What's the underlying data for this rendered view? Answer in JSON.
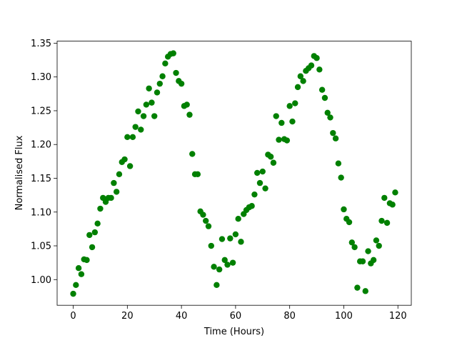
{
  "chart_data": {
    "type": "scatter",
    "xlabel": "Time (Hours)",
    "ylabel": "Normalised Flux",
    "color": "#008000",
    "x": [
      0,
      1,
      2,
      3,
      4,
      5,
      6,
      7,
      8,
      9,
      10,
      11,
      12,
      13,
      14,
      15,
      16,
      17,
      18,
      19,
      20,
      21,
      22,
      23,
      24,
      25,
      26,
      27,
      28,
      29,
      30,
      31,
      32,
      33,
      34,
      35,
      36,
      37,
      38,
      39,
      40,
      41,
      42,
      43,
      44,
      45,
      46,
      47,
      48,
      49,
      50,
      51,
      52,
      53,
      54,
      55,
      56,
      57,
      58,
      59,
      60,
      61,
      62,
      63,
      64,
      65,
      66,
      67,
      68,
      69,
      70,
      71,
      72,
      73,
      74,
      75,
      76,
      77,
      78,
      79,
      80,
      81,
      82,
      83,
      84,
      85,
      86,
      87,
      88,
      89,
      90,
      91,
      92,
      93,
      94,
      95,
      96,
      97,
      98,
      99,
      100,
      101,
      102,
      103,
      104,
      105,
      106,
      107,
      108,
      109,
      110,
      111,
      112,
      113,
      114,
      115,
      116,
      117,
      118,
      119
    ],
    "values": [
      0.979,
      0.992,
      1.017,
      1.008,
      1.03,
      1.029,
      1.066,
      1.048,
      1.07,
      1.083,
      1.105,
      1.121,
      1.115,
      1.121,
      1.121,
      1.143,
      1.13,
      1.156,
      1.174,
      1.178,
      1.211,
      1.168,
      1.211,
      1.226,
      1.249,
      1.222,
      1.242,
      1.259,
      1.283,
      1.262,
      1.242,
      1.277,
      1.29,
      1.301,
      1.32,
      1.33,
      1.334,
      1.335,
      1.306,
      1.294,
      1.29,
      1.257,
      1.259,
      1.244,
      1.186,
      1.156,
      1.156,
      1.101,
      1.096,
      1.087,
      1.079,
      1.05,
      1.019,
      0.992,
      1.015,
      1.06,
      1.029,
      1.022,
      1.061,
      1.025,
      1.067,
      1.09,
      1.056,
      1.097,
      1.103,
      1.107,
      1.109,
      1.126,
      1.158,
      1.143,
      1.16,
      1.135,
      1.185,
      1.182,
      1.173,
      1.242,
      1.207,
      1.232,
      1.208,
      1.206,
      1.257,
      1.234,
      1.261,
      1.285,
      1.301,
      1.294,
      1.309,
      1.313,
      1.317,
      1.331,
      1.328,
      1.311,
      1.281,
      1.269,
      1.247,
      1.24,
      1.217,
      1.209,
      1.172,
      1.151,
      1.104,
      1.09,
      1.085,
      1.055,
      1.048,
      0.988,
      1.027,
      1.027,
      0.983,
      1.042,
      1.024,
      1.029,
      1.058,
      1.05,
      1.087,
      1.121,
      1.084,
      1.113,
      1.111,
      1.129
    ],
    "xlim": [
      -5.95,
      124.95
    ],
    "xticks": [
      0,
      20,
      40,
      60,
      80,
      100,
      120
    ],
    "ylim": [
      0.962,
      1.353
    ],
    "yticks": [
      {
        "value": 1.0,
        "label": "1.00"
      },
      1.05,
      {
        "value": 1.1,
        "label": "1.10"
      },
      1.15,
      {
        "value": 1.2,
        "label": "1.20"
      },
      1.25,
      {
        "value": 1.3,
        "label": "1.30"
      },
      1.35
    ]
  }
}
